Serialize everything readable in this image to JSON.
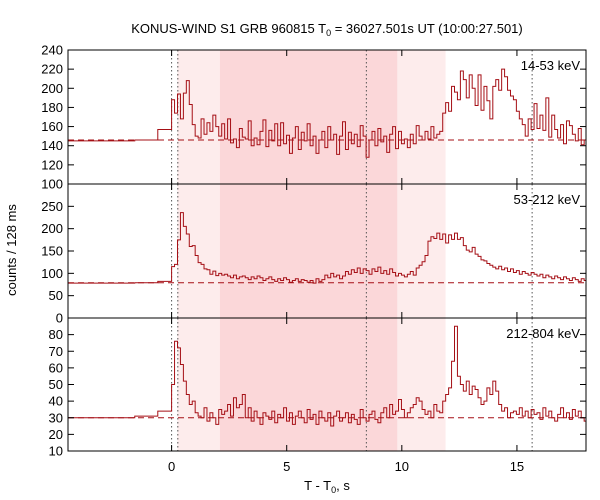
{
  "chart_data": {
    "type": "line",
    "title": {
      "prefix": "KONUS-WIND S1 GRB 960815 T",
      "sub": "0",
      "suffix": " = 36027.501s UT (10:00:27.501)"
    },
    "xlabel": {
      "prefix": "T - T",
      "sub": "0",
      "suffix": ", s"
    },
    "ylabel": "counts / 128 ms",
    "xlim": [
      -4.5,
      18.0
    ],
    "x_ticks": [
      0,
      5,
      10,
      15
    ],
    "x_tick_labels": [
      "0",
      "5",
      "10",
      "15"
    ],
    "shaded_intervals": [
      {
        "x0": 0.25,
        "x1": 11.9,
        "shade": "light"
      },
      {
        "x0": 2.1,
        "x1": 9.8,
        "shade": "dark"
      }
    ],
    "reference_lines": [
      0.0,
      0.27,
      8.46,
      15.66
    ],
    "colors": {
      "curve": "#a50f15",
      "light_band": "#fdecec",
      "dark_band": "#fbd7d9",
      "reference_line": "#555555"
    },
    "panels": [
      {
        "label": "14-53 keV",
        "ylim": [
          100,
          240
        ],
        "yticks": [
          100,
          120,
          140,
          160,
          180,
          200,
          220,
          240
        ],
        "ytick_labels": [
          "100",
          "120",
          "140",
          "160",
          "180",
          "200",
          "220",
          "240"
        ],
        "background": 146,
        "x_start": -4.5,
        "pre_trigger": [
          [
            -4.5,
            145
          ],
          [
            -1.6,
            146
          ],
          [
            -0.6,
            157
          ]
        ],
        "bin": 0.128,
        "values": [
          188,
          174,
          194,
          168,
          195,
          208,
          183,
          162,
          150,
          148,
          168,
          152,
          164,
          155,
          172,
          160,
          150,
          163,
          147,
          168,
          143,
          147,
          138,
          158,
          149,
          147,
          166,
          140,
          148,
          141,
          155,
          167,
          139,
          156,
          145,
          163,
          140,
          164,
          142,
          151,
          132,
          148,
          160,
          136,
          154,
          145,
          163,
          140,
          150,
          132,
          146,
          155,
          138,
          160,
          146,
          152,
          131,
          150,
          165,
          136,
          154,
          142,
          152,
          139,
          161,
          150,
          128,
          146,
          155,
          140,
          158,
          144,
          150,
          133,
          152,
          160,
          137,
          155,
          142,
          147,
          138,
          152,
          142,
          161,
          150,
          146,
          155,
          147,
          160,
          148,
          152,
          155,
          174,
          185,
          176,
          202,
          196,
          188,
          218,
          209,
          190,
          214,
          200,
          182,
          214,
          177,
          202,
          187,
          168,
          202,
          209,
          198,
          220,
          212,
          198,
          192,
          188,
          176,
          168,
          162,
          150,
          168,
          157,
          184,
          158,
          172,
          156,
          190,
          149,
          172,
          157,
          148,
          162,
          142,
          166,
          161,
          152,
          145,
          158,
          141,
          146,
          166,
          150,
          144,
          158,
          142,
          150,
          140,
          156,
          150,
          146,
          162,
          142,
          149,
          168,
          140,
          155,
          160,
          150,
          142,
          164,
          152,
          146,
          158,
          143,
          137,
          156,
          150,
          141,
          139,
          164,
          146,
          132,
          159,
          152,
          138,
          147,
          154,
          150,
          139,
          133,
          148,
          141,
          154,
          150,
          134,
          158,
          146,
          128,
          136,
          156,
          132,
          158,
          152,
          144,
          160,
          131,
          150,
          154,
          140,
          158,
          142,
          156,
          147,
          155,
          150,
          138,
          160,
          142,
          149,
          158,
          146
        ]
      },
      {
        "label": "53-212 keV",
        "ylim": [
          0,
          300
        ],
        "yticks": [
          0,
          50,
          100,
          150,
          200,
          250
        ],
        "ytick_labels": [
          "0",
          "50",
          "100",
          "150",
          "200",
          "250"
        ],
        "background": 79,
        "x_start": -4.5,
        "pre_trigger": [
          [
            -4.5,
            78
          ],
          [
            -1.6,
            79
          ],
          [
            -0.6,
            82
          ]
        ],
        "bin": 0.128,
        "values": [
          115,
          120,
          175,
          236,
          205,
          188,
          160,
          162,
          140,
          124,
          120,
          110,
          108,
          98,
          105,
          95,
          100,
          96,
          98,
          94,
          90,
          96,
          88,
          92,
          94,
          90,
          86,
          92,
          88,
          94,
          90,
          84,
          88,
          92,
          86,
          82,
          88,
          84,
          90,
          86,
          80,
          84,
          88,
          82,
          86,
          84,
          80,
          84,
          78,
          88,
          82,
          86,
          96,
          90,
          100,
          92,
          96,
          88,
          94,
          104,
          98,
          108,
          102,
          112,
          100,
          110,
          106,
          98,
          110,
          104,
          114,
          100,
          106,
          98,
          110,
          102,
          94,
          100,
          96,
          92,
          98,
          104,
          96,
          112,
          118,
          126,
          140,
          172,
          182,
          178,
          190,
          176,
          188,
          168,
          186,
          176,
          190,
          176,
          180,
          162,
          152,
          148,
          158,
          143,
          138,
          130,
          128,
          122,
          118,
          114,
          110,
          116,
          108,
          112,
          104,
          110,
          102,
          106,
          98,
          104,
          100,
          96,
          102,
          98,
          94,
          98,
          90,
          96,
          92,
          88,
          94,
          90,
          86,
          92,
          88,
          84,
          90,
          86,
          82,
          88,
          84,
          80,
          86,
          82,
          90,
          84,
          80,
          86,
          82,
          84,
          80,
          86,
          82,
          88,
          84,
          80,
          86,
          78,
          84,
          80,
          86,
          82,
          78,
          84,
          80,
          86,
          82,
          78,
          84,
          80,
          82,
          78,
          84,
          80,
          86,
          82,
          78,
          84,
          80,
          86,
          82,
          78,
          84,
          80,
          82,
          78,
          84,
          80,
          86,
          82,
          78,
          84,
          80,
          86,
          82,
          78,
          84,
          80,
          82,
          78,
          84,
          80,
          82,
          78,
          84,
          80,
          86,
          82,
          80,
          84,
          82,
          80
        ]
      },
      {
        "label": "212-804 keV",
        "ylim": [
          10,
          90
        ],
        "yticks": [
          10,
          20,
          30,
          40,
          50,
          60,
          70,
          80
        ],
        "ytick_labels": [
          "10",
          "20",
          "30",
          "40",
          "50",
          "60",
          "70",
          "80"
        ],
        "background": 30,
        "x_start": -4.5,
        "pre_trigger": [
          [
            -4.5,
            30
          ],
          [
            -1.6,
            31
          ],
          [
            -0.6,
            34
          ]
        ],
        "bin": 0.128,
        "values": [
          50,
          76,
          72,
          62,
          52,
          44,
          38,
          40,
          33,
          31,
          30,
          36,
          28,
          33,
          30,
          26,
          35,
          32,
          34,
          38,
          31,
          42,
          36,
          38,
          44,
          30,
          36,
          28,
          34,
          30,
          26,
          33,
          31,
          29,
          34,
          27,
          32,
          30,
          36,
          28,
          33,
          26,
          31,
          34,
          30,
          27,
          35,
          29,
          32,
          26,
          34,
          30,
          28,
          33,
          25,
          31,
          34,
          28,
          30,
          33,
          27,
          32,
          29,
          26,
          35,
          30,
          28,
          32,
          34,
          29,
          27,
          33,
          36,
          30,
          38,
          32,
          34,
          41,
          35,
          30,
          33,
          36,
          38,
          42,
          40,
          35,
          32,
          34,
          30,
          38,
          34,
          33,
          40,
          44,
          48,
          64,
          85,
          55,
          50,
          46,
          52,
          44,
          49,
          47,
          42,
          38,
          40,
          48,
          44,
          52,
          46,
          38,
          34,
          36,
          30,
          33,
          34,
          32,
          36,
          31,
          34,
          30,
          35,
          32,
          33,
          29,
          36,
          31,
          34,
          30,
          28,
          32,
          36,
          30,
          33,
          29,
          35,
          31,
          34,
          30,
          28,
          33,
          31,
          36,
          32,
          29,
          34,
          30,
          33,
          28,
          32,
          35,
          30,
          33,
          29,
          31,
          34,
          30,
          36,
          32,
          29,
          34,
          30,
          33,
          28,
          32,
          34,
          30,
          33,
          29,
          31,
          34,
          30,
          32,
          35,
          29,
          33,
          30,
          34,
          31,
          28,
          33,
          30,
          35,
          32,
          29,
          34,
          30,
          33,
          29,
          31,
          35,
          32,
          30,
          34,
          31,
          33,
          30,
          32,
          29,
          34,
          31
        ]
      }
    ]
  }
}
